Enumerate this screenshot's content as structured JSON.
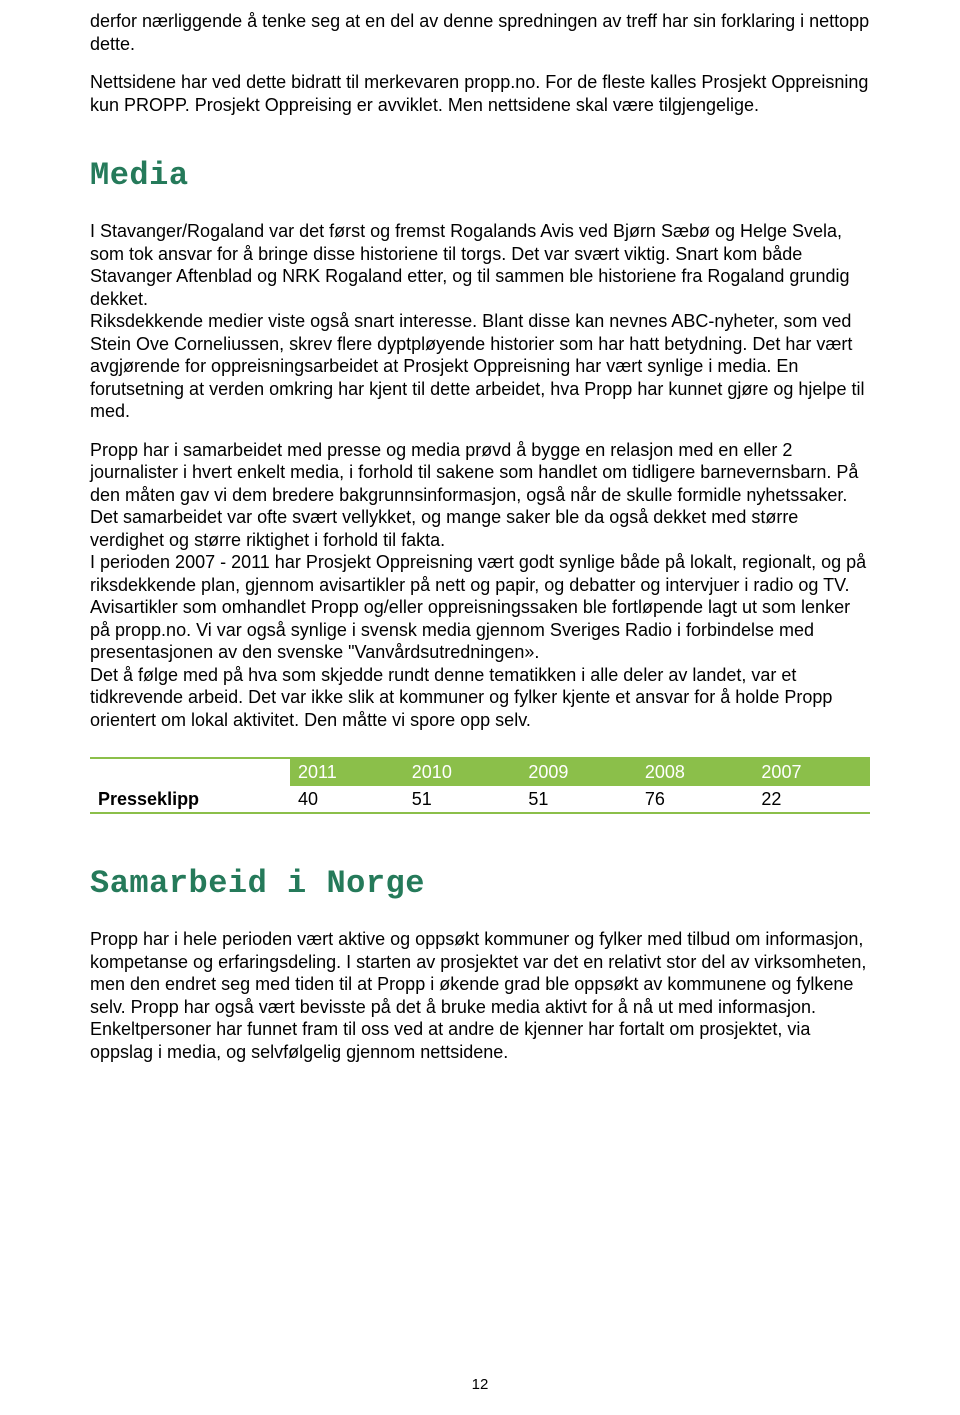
{
  "para_intro1": "derfor nærliggende å tenke seg at en del av denne spredningen av treff har sin forklaring i nettopp dette.",
  "para_intro2": "Nettsidene har ved dette bidratt til merkevaren propp.no. For de fleste kalles Prosjekt Oppreisning kun PROPP. Prosjekt Oppreising er avviklet. Men nettsidene skal være tilgjengelige.",
  "heading_media": "Media",
  "heading_media_color": "#257a5a",
  "para_media1": "I Stavanger/Rogaland var det først og fremst Rogalands Avis ved Bjørn Sæbø og Helge Svela, som tok ansvar for å bringe disse historiene til torgs. Det var svært viktig. Snart kom både Stavanger Aftenblad og NRK Rogaland etter, og til sammen ble historiene fra Rogaland grundig dekket.",
  "para_media2": "Riksdekkende medier viste også snart interesse. Blant disse kan nevnes ABC-nyheter, som ved Stein Ove Corneliussen, skrev flere dyptpløyende historier som har hatt betydning. Det har vært avgjørende for oppreisningsarbeidet at Prosjekt Oppreisning har vært synlige i media. En forutsetning at verden omkring har kjent til dette arbeidet, hva Propp har kunnet gjøre og hjelpe til med.",
  "para_media3": "Propp har i samarbeidet med presse og media prøvd å bygge en relasjon med en eller 2 journalister i hvert enkelt media, i forhold til sakene som handlet om tidligere barnevernsbarn. På den måten gav vi dem bredere bakgrunnsinformasjon, også når de skulle formidle nyhetssaker. Det samarbeidet var ofte svært vellykket, og mange saker ble da også dekket med større verdighet og større riktighet i forhold til fakta.",
  "para_media4": "I perioden 2007 - 2011 har Prosjekt Oppreisning vært godt synlige både på lokalt, regionalt, og på riksdekkende plan, gjennom avisartikler på nett og papir, og debatter og intervjuer i radio og TV.",
  "para_media5": "Avisartikler som omhandlet Propp og/eller oppreisningssaken ble fortløpende lagt ut som lenker på propp.no. Vi var også synlige i svensk media gjennom Sveriges Radio i forbindelse med presentasjonen av den svenske \"Vanvårdsutredningen».",
  "para_media6": "Det å følge med på hva som skjedde rundt denne tematikken i alle deler av landet, var et tidkrevende arbeid. Det var ikke slik at kommuner og fylker kjente et ansvar for å holde Propp orientert om lokal aktivitet. Den måtte vi spore opp selv.",
  "table": {
    "type": "table",
    "header_bg": "#8bbf4a",
    "header_text_color": "#ffffff",
    "border_color": "#8bbf4a",
    "columns": [
      "",
      "2011",
      "2010",
      "2009",
      "2008",
      "2007"
    ],
    "rows": [
      {
        "label": "Presseklipp",
        "values": [
          "40",
          "51",
          "51",
          "76",
          "22"
        ]
      }
    ]
  },
  "heading_samarbeid": "Samarbeid i Norge",
  "heading_samarbeid_color": "#257a5a",
  "para_samarbeid1": "Propp har i hele perioden vært aktive og oppsøkt kommuner og fylker med tilbud om informasjon, kompetanse og erfaringsdeling. I starten av prosjektet var det en relativt stor del av virksomheten, men den endret seg med tiden til at Propp i økende grad ble oppsøkt av kommunene og fylkene selv. Propp har også vært bevisste på det å bruke media aktivt for å nå ut med informasjon. Enkeltpersoner har funnet fram til oss ved at andre de kjenner har fortalt om prosjektet, via oppslag i media, og selvfølgelig gjennom nettsidene.",
  "page_number": "12"
}
